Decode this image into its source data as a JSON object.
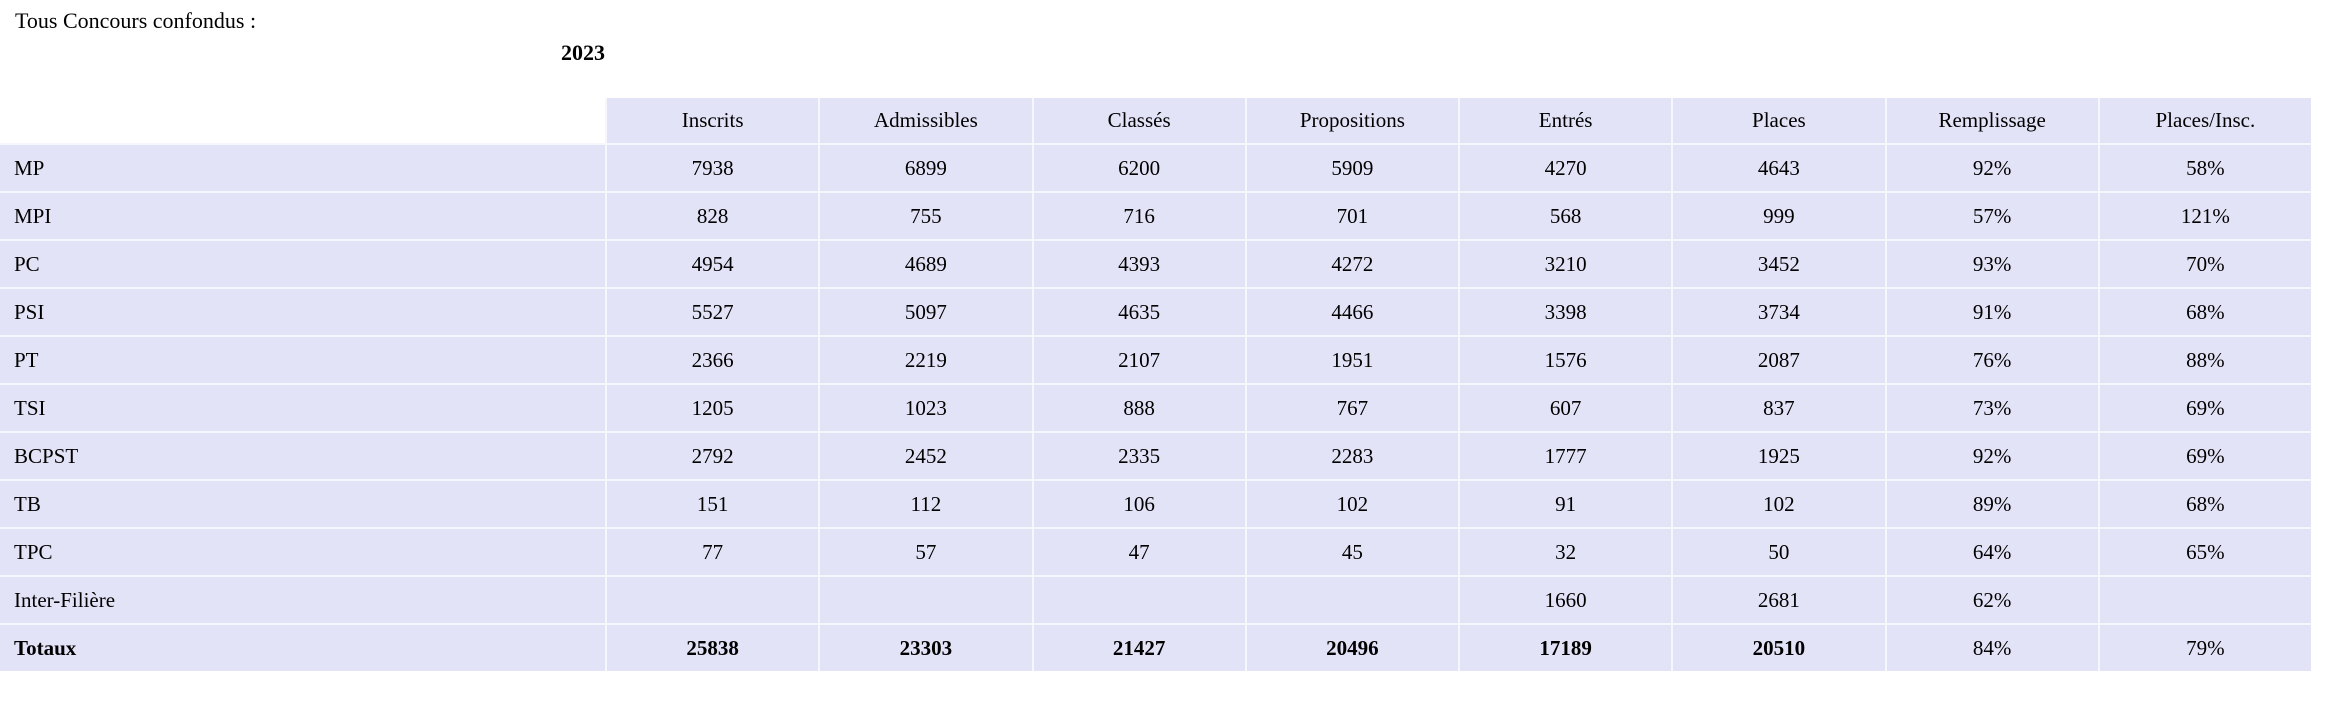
{
  "page": {
    "title": "Tous Concours confondus :",
    "year": "2023"
  },
  "colors": {
    "cell_background": "#e3e3f7",
    "separator": "#f6f6fd",
    "text": "#000000"
  },
  "table": {
    "columns": [
      "Inscrits",
      "Admissibles",
      "Classés",
      "Propositions",
      "Entrés",
      "Places",
      "Remplissage",
      "Places/Insc."
    ],
    "rows": [
      {
        "label": "MP",
        "values": [
          "7938",
          "6899",
          "6200",
          "5909",
          "4270",
          "4643",
          "92%",
          "58%"
        ],
        "bold_label": false,
        "bold_values": [
          false,
          false,
          false,
          false,
          false,
          false,
          false,
          false
        ]
      },
      {
        "label": "MPI",
        "values": [
          "828",
          "755",
          "716",
          "701",
          "568",
          "999",
          "57%",
          "121%"
        ],
        "bold_label": false,
        "bold_values": [
          false,
          false,
          false,
          false,
          false,
          false,
          false,
          false
        ]
      },
      {
        "label": "PC",
        "values": [
          "4954",
          "4689",
          "4393",
          "4272",
          "3210",
          "3452",
          "93%",
          "70%"
        ],
        "bold_label": false,
        "bold_values": [
          false,
          false,
          false,
          false,
          false,
          false,
          false,
          false
        ]
      },
      {
        "label": "PSI",
        "values": [
          "5527",
          "5097",
          "4635",
          "4466",
          "3398",
          "3734",
          "91%",
          "68%"
        ],
        "bold_label": false,
        "bold_values": [
          false,
          false,
          false,
          false,
          false,
          false,
          false,
          false
        ]
      },
      {
        "label": "PT",
        "values": [
          "2366",
          "2219",
          "2107",
          "1951",
          "1576",
          "2087",
          "76%",
          "88%"
        ],
        "bold_label": false,
        "bold_values": [
          false,
          false,
          false,
          false,
          false,
          false,
          false,
          false
        ]
      },
      {
        "label": "TSI",
        "values": [
          "1205",
          "1023",
          "888",
          "767",
          "607",
          "837",
          "73%",
          "69%"
        ],
        "bold_label": false,
        "bold_values": [
          false,
          false,
          false,
          false,
          false,
          false,
          false,
          false
        ]
      },
      {
        "label": "BCPST",
        "values": [
          "2792",
          "2452",
          "2335",
          "2283",
          "1777",
          "1925",
          "92%",
          "69%"
        ],
        "bold_label": false,
        "bold_values": [
          false,
          false,
          false,
          false,
          false,
          false,
          false,
          false
        ]
      },
      {
        "label": "TB",
        "values": [
          "151",
          "112",
          "106",
          "102",
          "91",
          "102",
          "89%",
          "68%"
        ],
        "bold_label": false,
        "bold_values": [
          false,
          false,
          false,
          false,
          false,
          false,
          false,
          false
        ]
      },
      {
        "label": "TPC",
        "values": [
          "77",
          "57",
          "47",
          "45",
          "32",
          "50",
          "64%",
          "65%"
        ],
        "bold_label": false,
        "bold_values": [
          false,
          false,
          false,
          false,
          false,
          false,
          false,
          false
        ]
      },
      {
        "label": "Inter-Filière",
        "values": [
          "",
          "",
          "",
          "",
          "1660",
          "2681",
          "62%",
          ""
        ],
        "bold_label": false,
        "bold_values": [
          false,
          false,
          false,
          false,
          false,
          false,
          false,
          false
        ]
      },
      {
        "label": "Totaux",
        "values": [
          "25838",
          "23303",
          "21427",
          "20496",
          "17189",
          "20510",
          "84%",
          "79%"
        ],
        "bold_label": true,
        "bold_values": [
          true,
          true,
          true,
          true,
          true,
          true,
          false,
          false
        ]
      }
    ]
  }
}
